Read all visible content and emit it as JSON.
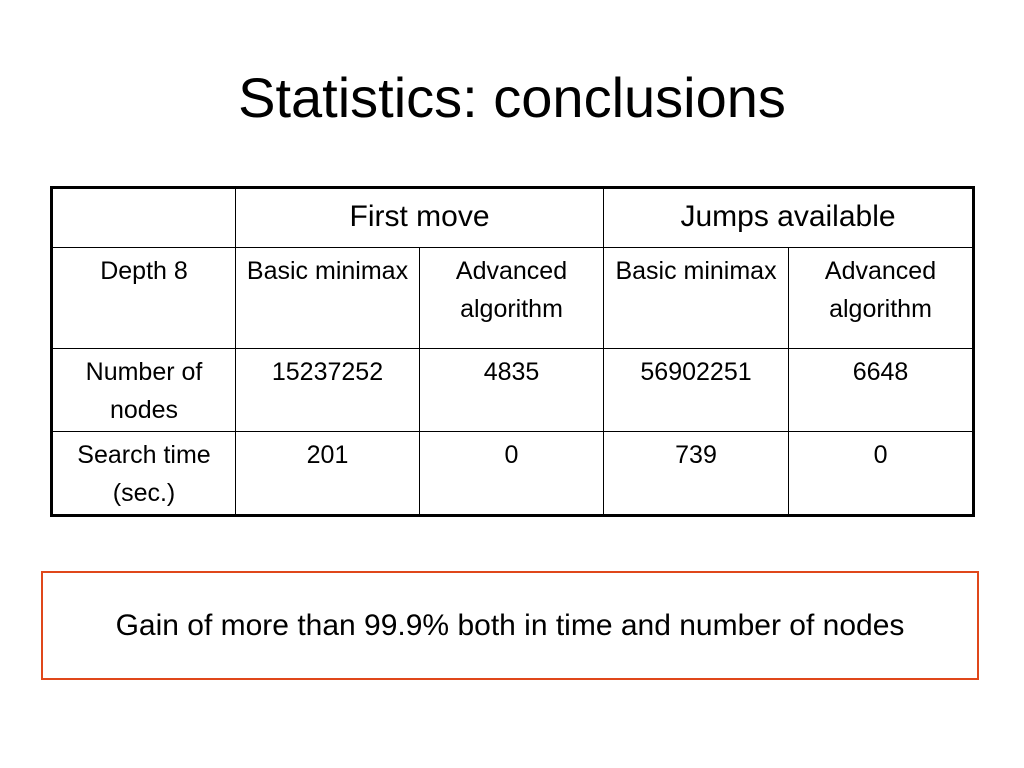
{
  "slide": {
    "title": "Statistics: conclusions"
  },
  "table": {
    "group_headers": [
      "",
      "First move",
      "Jumps available"
    ],
    "rows": [
      {
        "label": "Depth 8",
        "cells": [
          "Basic minimax",
          "Advanced algorithm",
          "Basic minimax",
          "Advanced algorithm"
        ]
      },
      {
        "label": "Number of nodes",
        "cells": [
          "15237252",
          "4835",
          "56902251",
          "6648"
        ]
      },
      {
        "label": "Search time (sec.)",
        "cells": [
          "201",
          "0",
          "739",
          "0"
        ]
      }
    ]
  },
  "conclusion": {
    "text": "Gain of more than 99.9% both in time and number of nodes",
    "border_color": "#e0471a"
  }
}
